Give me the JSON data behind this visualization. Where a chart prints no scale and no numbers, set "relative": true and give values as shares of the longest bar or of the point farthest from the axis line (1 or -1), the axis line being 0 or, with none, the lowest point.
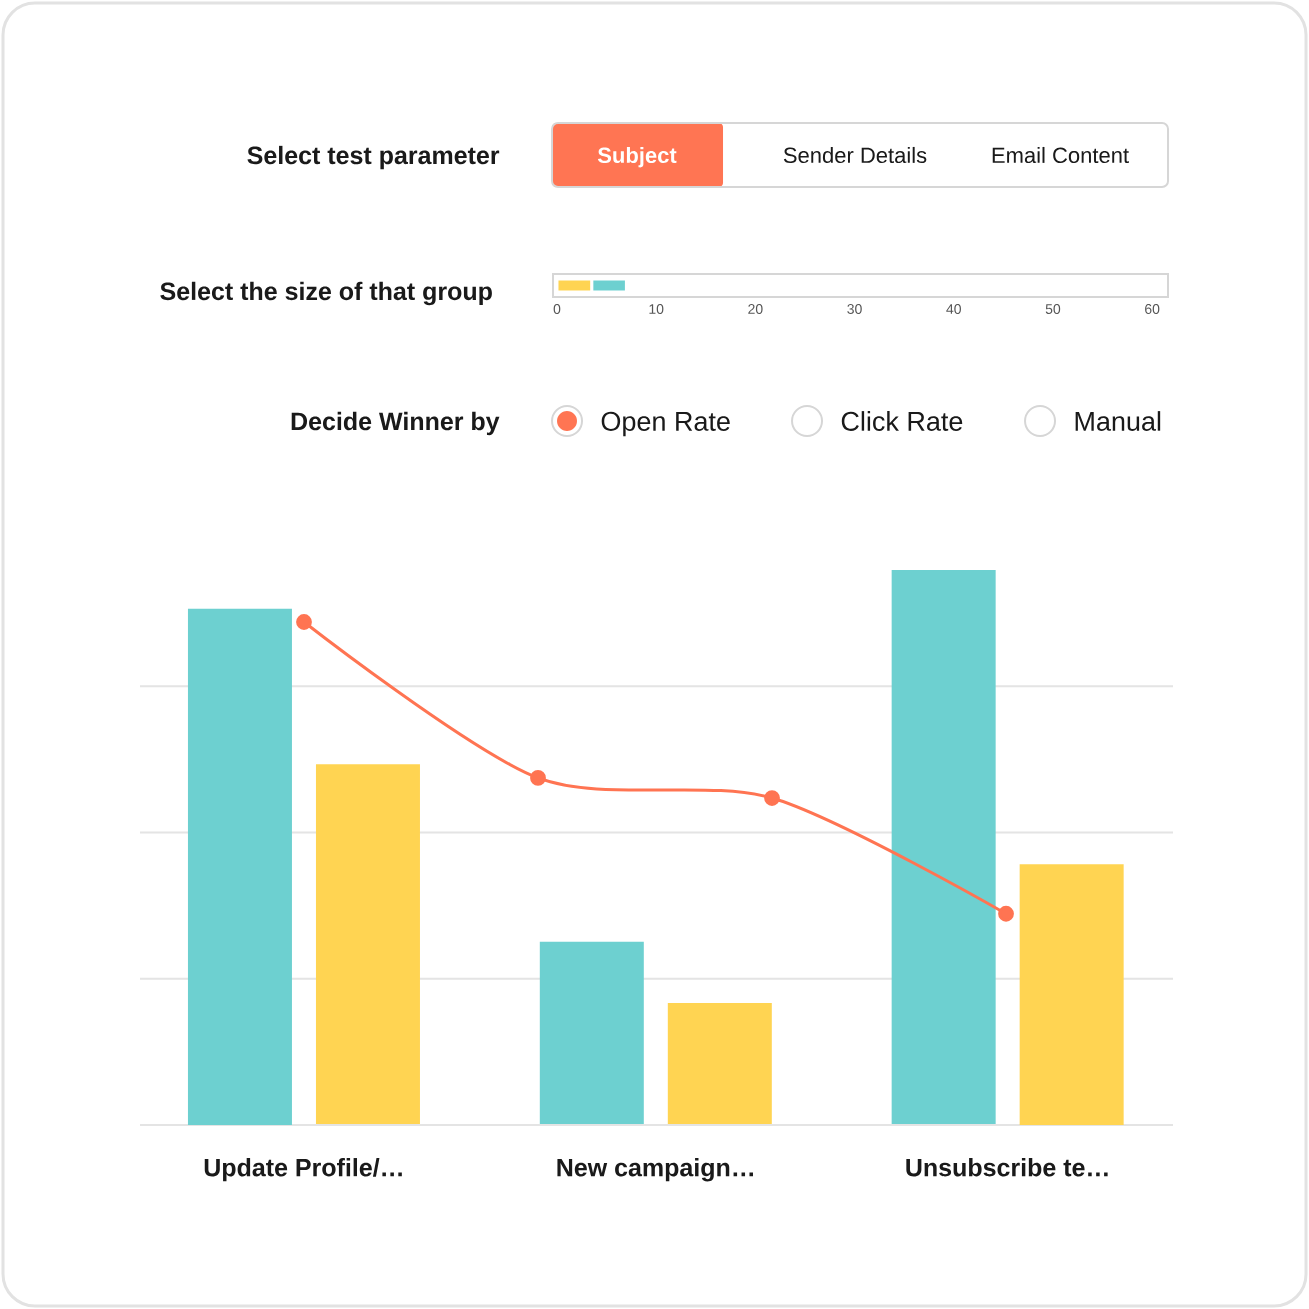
{
  "chart_data": [
    {
      "type": "other",
      "title": "Select test parameter",
      "annotations": [
        "Subject",
        "Sender Details",
        "Email Content"
      ]
    },
    {
      "type": "bar",
      "orientation": "horizontal",
      "stacked": true,
      "ylabel": "Select the size of that group",
      "categories": [
        null
      ],
      "series": [
        {
          "color": "#ffd452",
          "values": [
            3.5
          ]
        },
        {
          "color": "#6dd0d0",
          "values": [
            3.5
          ]
        }
      ],
      "xlim": [
        -0.4,
        61.6
      ],
      "xticks": [
        0,
        10,
        20,
        30,
        40,
        50,
        60
      ],
      "tick_labels": "x"
    },
    {
      "type": "other",
      "title": "Decide Winner by",
      "annotations": [
        "Open Rate",
        "Click Rate",
        "Manual"
      ]
    },
    {
      "type": "bar",
      "relative": true,
      "categories": [
        "Update Profile/…",
        "New campaign…",
        "Unsubscribe te…"
      ],
      "series": [
        {
          "color": "#6dd0d0",
          "values": [
            0.93,
            0.33,
            1
          ]
        },
        {
          "color": "#ffd452",
          "values": [
            0.65,
            0.22,
            0.47
          ]
        }
      ],
      "grid": "y",
      "tick_labels": "x"
    },
    {
      "type": "line",
      "relative": true,
      "categories": [
        null,
        null,
        null,
        null
      ],
      "series": [
        {
          "color": "#ff7452",
          "values": [
            1,
            0.69,
            0.65,
            0.42
          ]
        }
      ],
      "marker": "circle",
      "tick_labels": false
    }
  ]
}
